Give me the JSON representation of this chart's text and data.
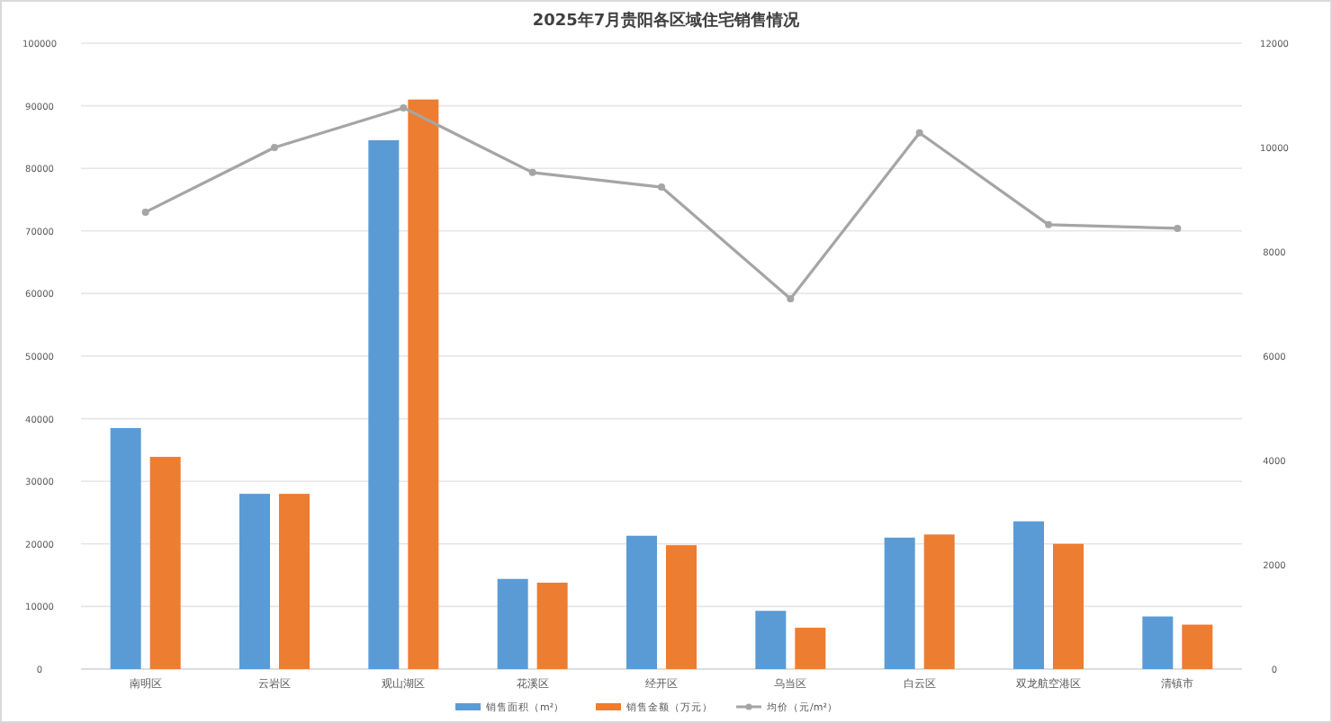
{
  "chart_data": {
    "type": "bar",
    "title": "2025年7月贵阳各区域住宅销售情况",
    "categories": [
      "南明区",
      "云岩区",
      "观山湖区",
      "花溪区",
      "经开区",
      "乌当区",
      "白云区",
      "双龙航空港区",
      "清镇市"
    ],
    "series": [
      {
        "name": "销售面积（m²）",
        "color": "#5b9bd5",
        "values": [
          38500,
          28000,
          84500,
          14400,
          21300,
          9300,
          21000,
          23600,
          8400
        ]
      },
      {
        "name": "销售金额（万元）",
        "color": "#ed7d31",
        "values": [
          33900,
          28000,
          91000,
          13800,
          19800,
          6600,
          21500,
          20000,
          7100
        ]
      },
      {
        "name": "均价（元/m²）",
        "type": "line",
        "axis": "y2",
        "color": "#a5a5a5",
        "marker": "circle",
        "values": [
          8760,
          10000,
          10760,
          9520,
          9240,
          7100,
          10280,
          8520,
          8450
        ]
      }
    ],
    "ylim": [
      0,
      100000
    ],
    "yticks": [
      0,
      10000,
      20000,
      30000,
      40000,
      50000,
      60000,
      70000,
      80000,
      90000,
      100000
    ],
    "y2lim": [
      0,
      12000
    ],
    "y2ticks": [
      0,
      2000,
      4000,
      6000,
      8000,
      10000,
      12000
    ],
    "grid": "y",
    "legend": "bottom"
  }
}
